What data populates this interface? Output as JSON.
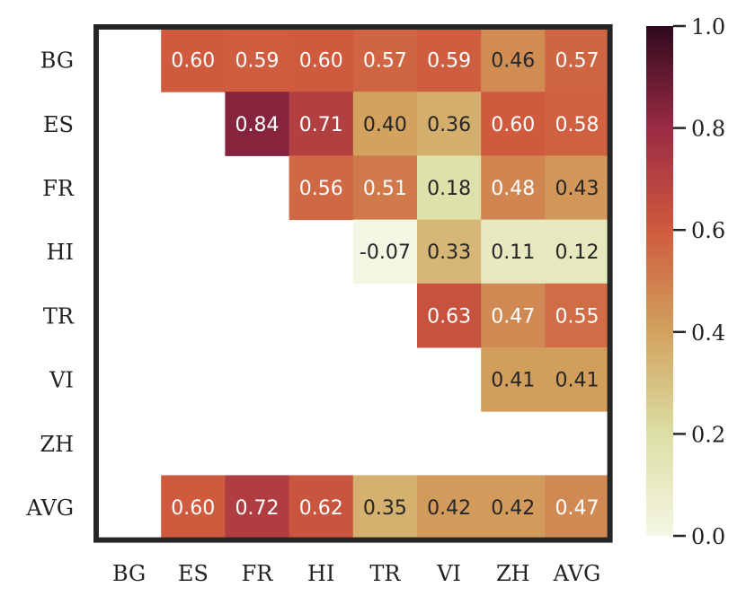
{
  "chart_data": {
    "type": "heatmap",
    "title": "",
    "xlabel": "",
    "ylabel": "",
    "x_categories": [
      "BG",
      "ES",
      "FR",
      "HI",
      "TR",
      "VI",
      "ZH",
      "AVG"
    ],
    "y_categories": [
      "BG",
      "ES",
      "FR",
      "HI",
      "TR",
      "VI",
      "ZH",
      "AVG"
    ],
    "values": [
      [
        null,
        0.6,
        0.59,
        0.6,
        0.57,
        0.59,
        0.46,
        0.57
      ],
      [
        null,
        null,
        0.84,
        0.71,
        0.4,
        0.36,
        0.6,
        0.58
      ],
      [
        null,
        null,
        null,
        0.56,
        0.51,
        0.18,
        0.48,
        0.43
      ],
      [
        null,
        null,
        null,
        null,
        -0.07,
        0.33,
        0.11,
        0.12
      ],
      [
        null,
        null,
        null,
        null,
        null,
        0.63,
        0.47,
        0.55
      ],
      [
        null,
        null,
        null,
        null,
        null,
        null,
        0.41,
        0.41
      ],
      [
        null,
        null,
        null,
        null,
        null,
        null,
        null,
        null
      ],
      [
        null,
        0.6,
        0.72,
        0.62,
        0.35,
        0.42,
        0.42,
        0.47
      ]
    ],
    "colorbar": {
      "range": [
        0.0,
        1.0
      ],
      "ticks": [
        "0.0",
        "0.2",
        "0.4",
        "0.6",
        "0.8",
        "1.0"
      ],
      "colormap": [
        "#f5f6e4",
        "#dcdfa4",
        "#d2a25e",
        "#cf5a3e",
        "#9b2a44",
        "#2e0a1e"
      ]
    },
    "grid": false,
    "frame_color": "#262626"
  }
}
